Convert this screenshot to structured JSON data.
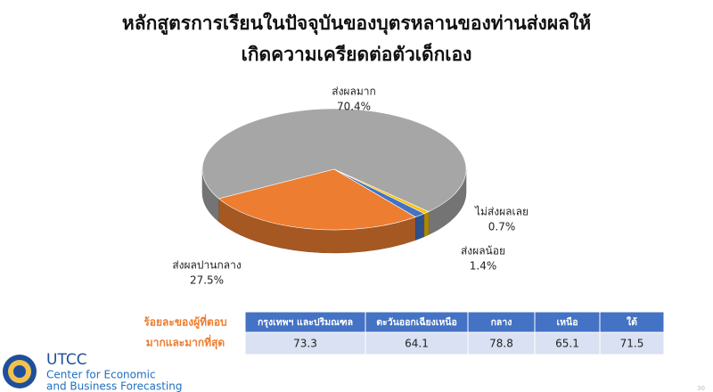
{
  "chart_data": {
    "type": "pie",
    "title": [
      "หลักสูตรการเรียนในปัจจุบันของบุตรหลานของท่านส่งผลให้",
      "เกิดความเครียดต่อตัวเด็กเอง"
    ],
    "categories": [
      "ส่งผลมาก",
      "ส่งผลปานกลาง",
      "ส่งผลน้อย",
      "ไม่ส่งผลเลย"
    ],
    "values": [
      70.4,
      27.5,
      1.4,
      0.7
    ],
    "value_labels": [
      "70.4%",
      "27.5%",
      "1.4%",
      "0.7%"
    ],
    "colors": [
      "#a6a6a6",
      "#ed7d31",
      "#4472c4",
      "#ffc000"
    ]
  },
  "table": {
    "row_header": [
      "ร้อยละของผู้ที่ตอบ",
      "มากและมากที่สุด"
    ],
    "columns": [
      "กรุงเทพฯ และปริมณฑล",
      "ตะวันออกเฉียงเหนือ",
      "กลาง",
      "เหนือ",
      "ใต้"
    ],
    "values": [
      73.3,
      64.1,
      78.8,
      65.1,
      71.5
    ]
  },
  "logo": {
    "name": "UTCC",
    "line1": "Center for Economic",
    "line2": "and Business Forecasting"
  },
  "page_number": "30"
}
